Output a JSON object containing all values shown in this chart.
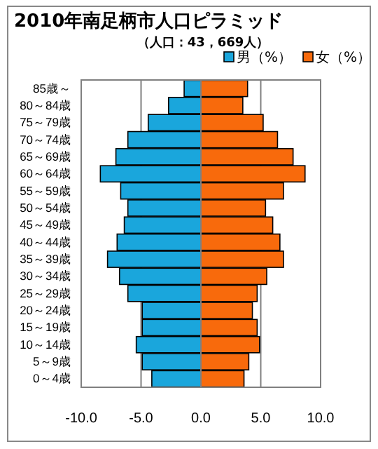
{
  "chart_data": {
    "type": "bar",
    "orientation": "horizontal",
    "stacked": true,
    "title": "2010年南足柄市人口ピラミッド",
    "subtitle": "（人口：43，669人）",
    "categories": [
      "85歳～",
      "80～84歳",
      "75～79歳",
      "70～74歳",
      "65～69歳",
      "60～64歳",
      "55～59歳",
      "50～54歳",
      "45～49歳",
      "40～44歳",
      "35～39歳",
      "30～34歳",
      "25～29歳",
      "20～24歳",
      "15～19歳",
      "10～14歳",
      "5～9歳",
      "0～4歳"
    ],
    "series": [
      {
        "name": "男（%）",
        "color": "#1aa6dc",
        "values": [
          -1.4,
          -2.7,
          -4.4,
          -6.1,
          -7.1,
          -8.4,
          -6.7,
          -6.1,
          -6.4,
          -7.0,
          -7.8,
          -6.8,
          -6.1,
          -4.9,
          -4.9,
          -5.4,
          -4.9,
          -4.1
        ]
      },
      {
        "name": "女（%）",
        "color": "#f86a0c",
        "values": [
          3.9,
          3.5,
          5.2,
          6.4,
          7.7,
          8.7,
          6.9,
          5.4,
          6.0,
          6.6,
          6.9,
          5.5,
          4.7,
          4.3,
          4.7,
          4.9,
          4.0,
          3.6
        ]
      }
    ],
    "xlim": [
      -10,
      10
    ],
    "xticks": [
      {
        "value": -10,
        "label": "-10.0"
      },
      {
        "value": -5,
        "label": "-5.0"
      },
      {
        "value": 0,
        "label": "0.0"
      },
      {
        "value": 5,
        "label": "5.0"
      },
      {
        "value": 10,
        "label": "10.0"
      }
    ],
    "grid": "x",
    "legend": "top right"
  }
}
